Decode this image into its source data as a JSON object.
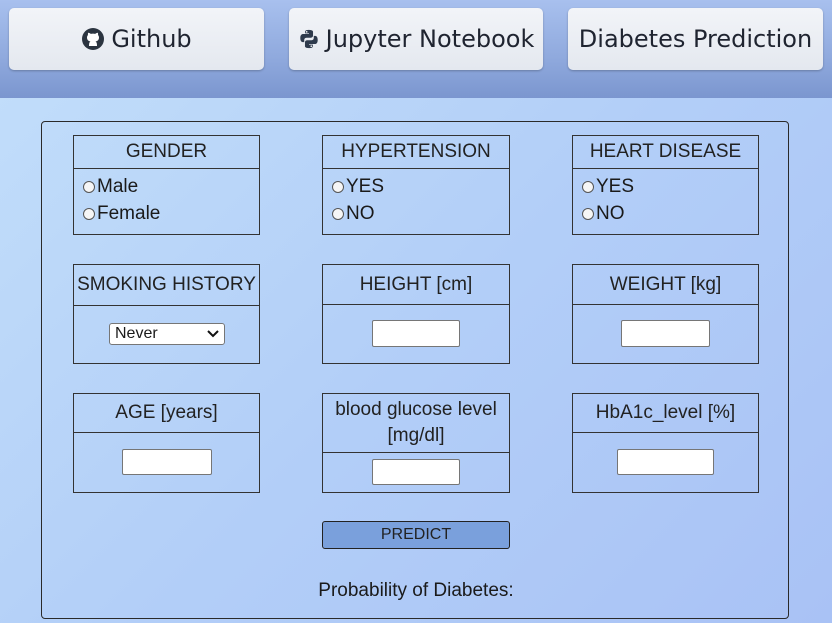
{
  "nav": {
    "github": {
      "label": "Github",
      "icon": "github-icon"
    },
    "jupyter": {
      "label": "Jupyter Notebook",
      "icon": "python-icon"
    },
    "prediction": {
      "label": "Diabetes Prediction"
    }
  },
  "form": {
    "gender": {
      "title": "GENDER",
      "options": [
        "Male",
        "Female"
      ]
    },
    "hypertension": {
      "title": "HYPERTENSION",
      "options": [
        "YES",
        "NO"
      ]
    },
    "heart_disease": {
      "title": "HEART DISEASE",
      "options": [
        "YES",
        "NO"
      ]
    },
    "smoking": {
      "title": "SMOKING HISTORY",
      "selected": "Never"
    },
    "height": {
      "title": "HEIGHT [cm]",
      "value": ""
    },
    "weight": {
      "title": "WEIGHT [kg]",
      "value": ""
    },
    "age": {
      "title": "AGE [years]",
      "value": ""
    },
    "glucose": {
      "title": "blood glucose level [mg/dl]",
      "value": ""
    },
    "hba1c": {
      "title": "HbA1c_level [%]",
      "value": ""
    },
    "predict_label": "PREDICT"
  },
  "result": {
    "label": "Probability of Diabetes:"
  },
  "colors": {
    "header": "#8fa9dd",
    "predict_button": "#7aa0dc",
    "background": "#b3cff8"
  }
}
